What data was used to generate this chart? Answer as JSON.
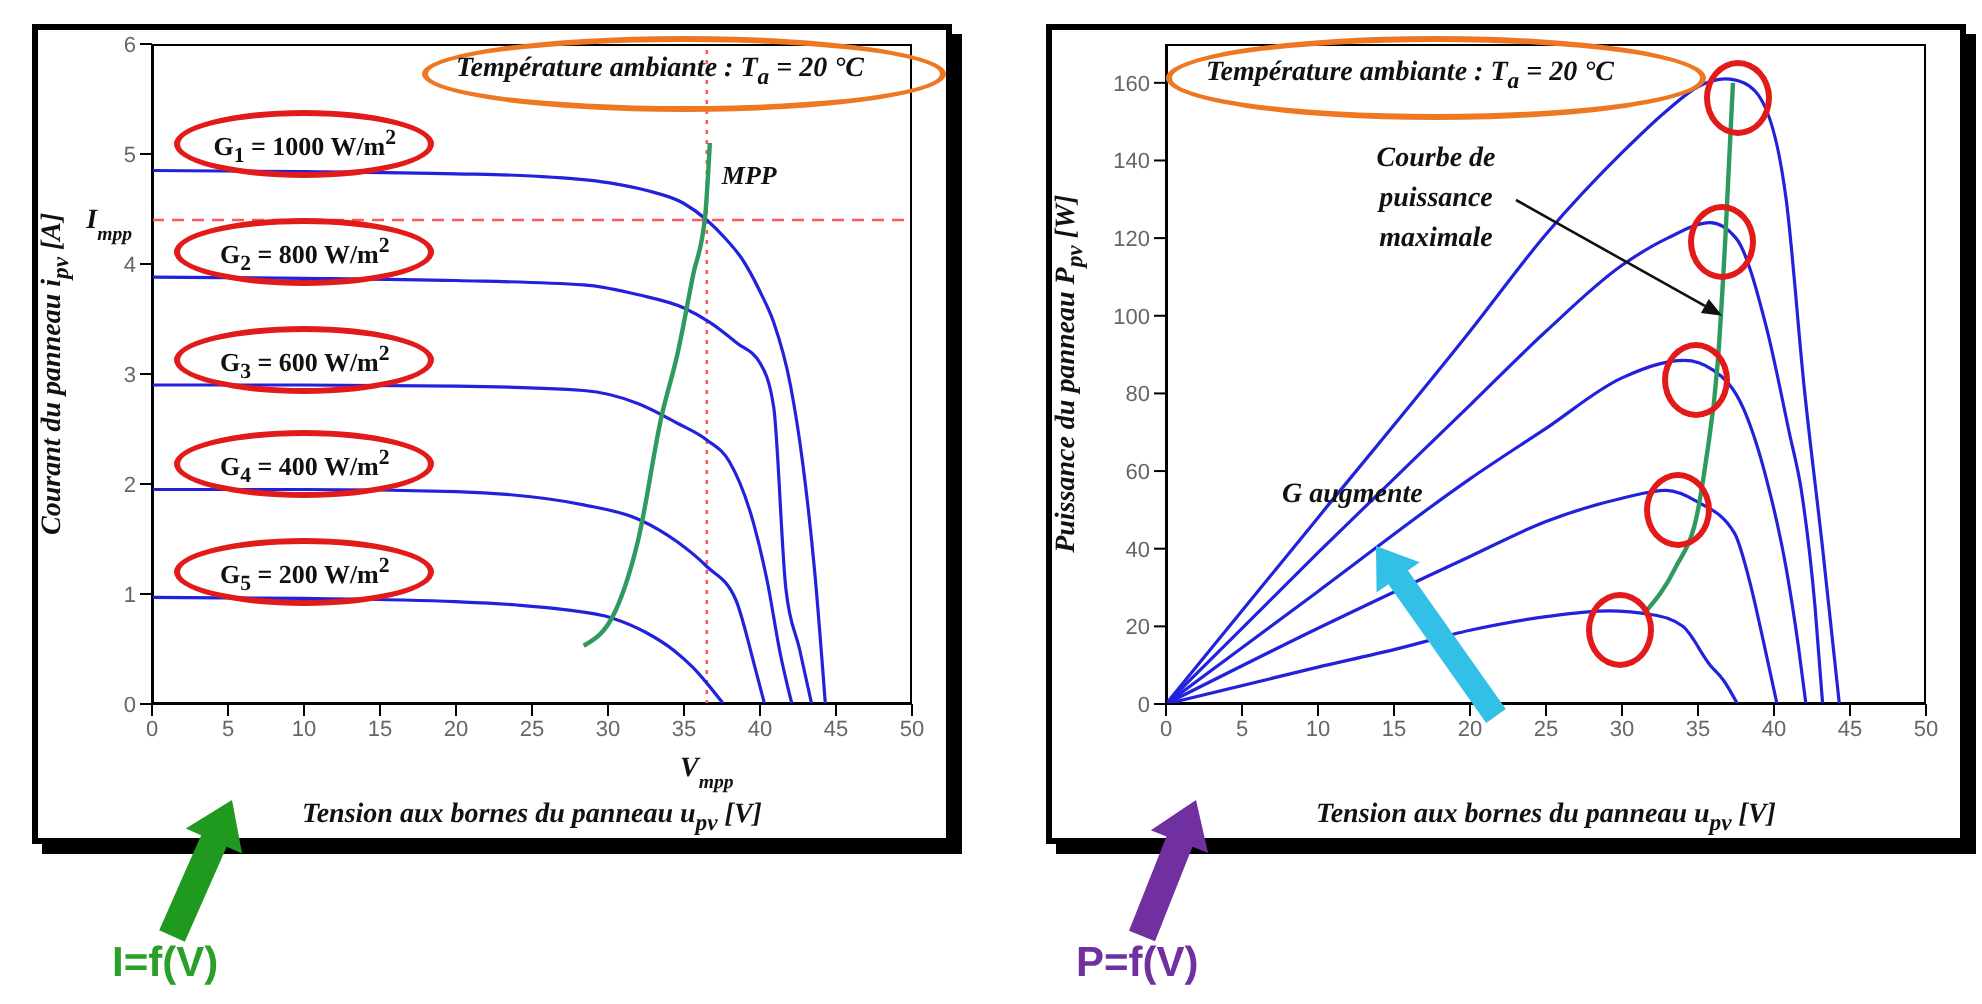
{
  "chart_data": [
    {
      "type": "line",
      "xlabel": "Tension aux bornes du panneau u$_{pv}$ [V]",
      "ylabel": "Courant du panneau i$_{pv}$ [A]",
      "xlim": [
        0,
        50
      ],
      "xticks": [
        0,
        5,
        10,
        15,
        20,
        25,
        30,
        35,
        40,
        45,
        50
      ],
      "ylim": [
        0,
        6
      ],
      "yticks": [
        0,
        1,
        2,
        3,
        4,
        5,
        6
      ],
      "series": [
        {
          "name": "G$_{1}$ = 1000 W/m$^{2}$",
          "color": "#2222dd",
          "x": [
            0,
            10,
            20,
            25,
            30,
            32.5,
            35,
            36.5,
            37.8,
            38.8,
            40,
            40.9,
            42,
            42.8,
            43.6,
            44.3
          ],
          "values": [
            4.85,
            4.84,
            4.82,
            4.8,
            4.74,
            4.67,
            4.55,
            4.4,
            4.22,
            4.05,
            3.75,
            3.47,
            2.9,
            2.2,
            1.2,
            0
          ]
        },
        {
          "name": "G$_{2}$ = 800 W/m$^{2}$",
          "color": "#2222dd",
          "x": [
            0,
            10,
            20,
            28.4,
            32,
            35,
            36.7,
            38.5,
            40,
            40.9,
            41.7,
            42.6,
            43.4
          ],
          "values": [
            3.88,
            3.87,
            3.85,
            3.81,
            3.72,
            3.6,
            3.47,
            3.28,
            3.1,
            2.7,
            1.05,
            0.5,
            0
          ]
        },
        {
          "name": "G$_{3}$ = 600 W/m$^{2}$",
          "color": "#2222dd",
          "x": [
            0,
            10,
            20,
            28.4,
            32,
            34.6,
            36.5,
            38,
            39.6,
            40.5,
            41.3,
            42.1
          ],
          "values": [
            2.9,
            2.9,
            2.89,
            2.85,
            2.73,
            2.55,
            2.4,
            2.2,
            1.63,
            1.1,
            0.48,
            0
          ]
        },
        {
          "name": "G$_{4}$ = 400 W/m$^{2}$",
          "color": "#2222dd",
          "x": [
            0,
            10,
            20,
            28.4,
            32,
            34.6,
            36.5,
            38.4,
            39.6,
            40.3
          ],
          "values": [
            1.95,
            1.95,
            1.93,
            1.81,
            1.68,
            1.47,
            1.25,
            0.95,
            0.37,
            0
          ]
        },
        {
          "name": "G$_{5}$ = 200 W/m$^{2}$",
          "color": "#2222dd",
          "x": [
            0,
            10,
            20,
            24,
            27,
            30.3,
            32.5,
            34.4,
            35.6,
            36.5,
            37.6
          ],
          "values": [
            0.97,
            0.96,
            0.93,
            0.9,
            0.86,
            0.78,
            0.65,
            0.48,
            0.33,
            0.19,
            0
          ]
        },
        {
          "name": "MPP",
          "color": "#2e9a5e",
          "x": [
            28.4,
            30.5,
            32,
            33.5,
            34.6,
            35.6,
            36.4,
            36.7
          ],
          "values": [
            0.53,
            0.85,
            1.5,
            2.6,
            3.2,
            3.9,
            4.45,
            5.1
          ]
        }
      ],
      "ref_lines": [
        {
          "axis": "y",
          "value": 4.4,
          "label": "I$_{mpp}$",
          "color": "#ff5a5a",
          "line_style": "dashed"
        },
        {
          "axis": "x",
          "value": 36.5,
          "label": "V$_{mpp}$",
          "color": "#ff5a5a",
          "line_style": "dotted"
        }
      ],
      "annotations": [
        "Température ambiante : T$_{a}$ = 20 °C",
        "I=f(V)"
      ]
    },
    {
      "type": "line",
      "xlabel": "Tension aux bornes du panneau u$_{pv}$ [V]",
      "ylabel": "Puissance du panneau P$_{pv}$ [W]",
      "xlim": [
        0,
        50
      ],
      "xticks": [
        0,
        5,
        10,
        15,
        20,
        25,
        30,
        35,
        40,
        45,
        50
      ],
      "ylim": [
        0,
        170
      ],
      "yticks": [
        0,
        20,
        40,
        60,
        80,
        100,
        120,
        140,
        160
      ],
      "series": [
        {
          "color": "#2222dd",
          "x": [
            0,
            10,
            20,
            25,
            30,
            33,
            35,
            36.8,
            38,
            39.5,
            40.8,
            42,
            43.2,
            44.3
          ],
          "values": [
            0,
            48,
            96,
            121,
            142,
            153,
            159,
            161,
            160,
            153,
            130,
            81,
            40,
            0
          ]
        },
        {
          "color": "#2222dd",
          "x": [
            0,
            10,
            20,
            25,
            30,
            33,
            35.8,
            37.5,
            39.5,
            41,
            41.8,
            42.7,
            43.2
          ],
          "values": [
            0,
            39,
            77,
            96,
            113,
            120,
            124,
            120,
            97,
            70,
            55,
            25,
            0
          ]
        },
        {
          "color": "#2222dd",
          "x": [
            0,
            10,
            20,
            25,
            30,
            34.1,
            36,
            38,
            39.5,
            40.8,
            41.6,
            42.1
          ],
          "values": [
            0,
            29,
            58,
            71,
            84,
            88.5,
            86,
            76,
            58,
            35,
            15,
            0
          ]
        },
        {
          "color": "#2222dd",
          "x": [
            0,
            10,
            20,
            25,
            30,
            32.9,
            35,
            37.4,
            38.5,
            39.2,
            40.2
          ],
          "values": [
            0,
            19.5,
            38,
            47,
            53,
            55,
            52,
            44,
            30,
            18,
            0
          ]
        },
        {
          "color": "#2222dd",
          "x": [
            0,
            10,
            15,
            20,
            25,
            29.1,
            32,
            34,
            35.8,
            36.7,
            37.6
          ],
          "values": [
            0,
            9.5,
            14,
            19,
            22.5,
            24,
            23,
            20,
            10,
            6,
            0
          ]
        },
        {
          "color": "#2e9a5e",
          "x": [
            31.6,
            33.5,
            35,
            35.5,
            36.3,
            36.8,
            37.3
          ],
          "values": [
            24,
            35,
            50,
            62,
            88,
            120,
            160
          ]
        }
      ],
      "annotations": [
        "Température ambiante : T$_{a}$ = 20 °C",
        "Courbe de puissance maximale",
        "G augmente",
        "P=f(V)"
      ]
    }
  ]
}
